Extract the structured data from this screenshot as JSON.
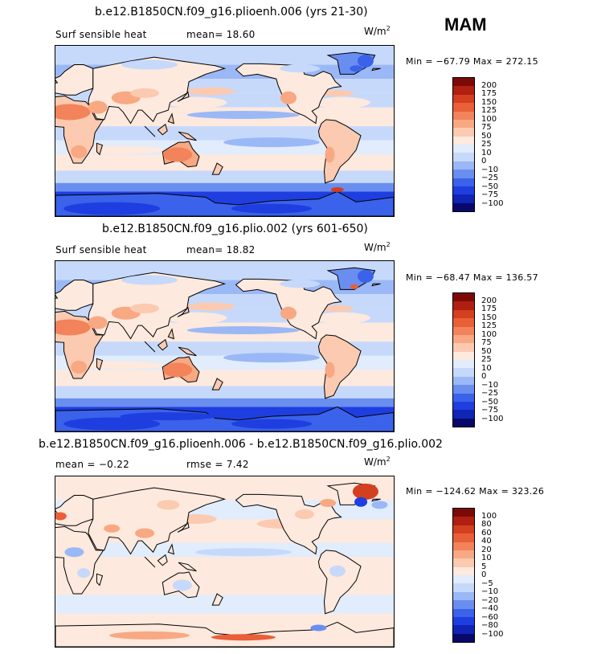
{
  "season": "MAM",
  "colors": {
    "scale": [
      "#08086b",
      "#1025b5",
      "#1f3ee0",
      "#3a62ea",
      "#6a8ef0",
      "#9bb8f6",
      "#c6d9fb",
      "#e1ecfc",
      "#fde9dd",
      "#fbcab0",
      "#f8a882",
      "#f2835a",
      "#e95f38",
      "#d43f1f",
      "#b02010",
      "#7b0a06"
    ],
    "land_edge": "#000000"
  },
  "panels": [
    {
      "title": "b.e12.B1850CN.f09_g16.plioenh.006 (yrs 21-30)",
      "variable": "Surf sensible heat",
      "stat1_label": "mean=",
      "stat1_value": "18.60",
      "stat2_label": "",
      "stat2_value": "",
      "units": "W/m",
      "units_exp": "2",
      "min_label": "Min = ",
      "min_value": "−67.79",
      "max_label": "Max = ",
      "max_value": "272.15",
      "levels": [
        "200",
        "175",
        "150",
        "125",
        "100",
        "75",
        "50",
        "25",
        "10",
        "0",
        "−10",
        "−25",
        "−50",
        "−75",
        "−100"
      ]
    },
    {
      "title": "b.e12.B1850CN.f09_g16.plio.002 (yrs 601-650)",
      "variable": "Surf sensible heat",
      "stat1_label": "mean=",
      "stat1_value": "18.82",
      "stat2_label": "",
      "stat2_value": "",
      "units": "W/m",
      "units_exp": "2",
      "min_label": "Min = ",
      "min_value": "−68.47",
      "max_label": "Max = ",
      "max_value": "136.57",
      "levels": [
        "200",
        "175",
        "150",
        "125",
        "100",
        "75",
        "50",
        "25",
        "10",
        "0",
        "−10",
        "−25",
        "−50",
        "−75",
        "−100"
      ]
    },
    {
      "title": "b.e12.B1850CN.f09_g16.plioenh.006 - b.e12.B1850CN.f09_g16.plio.002",
      "variable": "",
      "stat1_label": "mean = ",
      "stat1_value": "−0.22",
      "stat2_label": "rmse = ",
      "stat2_value": "7.42",
      "units": "W/m",
      "units_exp": "2",
      "min_label": "Min = ",
      "min_value": "−124.62",
      "max_label": "Max = ",
      "max_value": "323.26",
      "levels": [
        "100",
        "80",
        "60",
        "40",
        "20",
        "10",
        "5",
        "0",
        "−5",
        "−10",
        "−20",
        "−40",
        "−60",
        "−80",
        "−100"
      ]
    }
  ]
}
